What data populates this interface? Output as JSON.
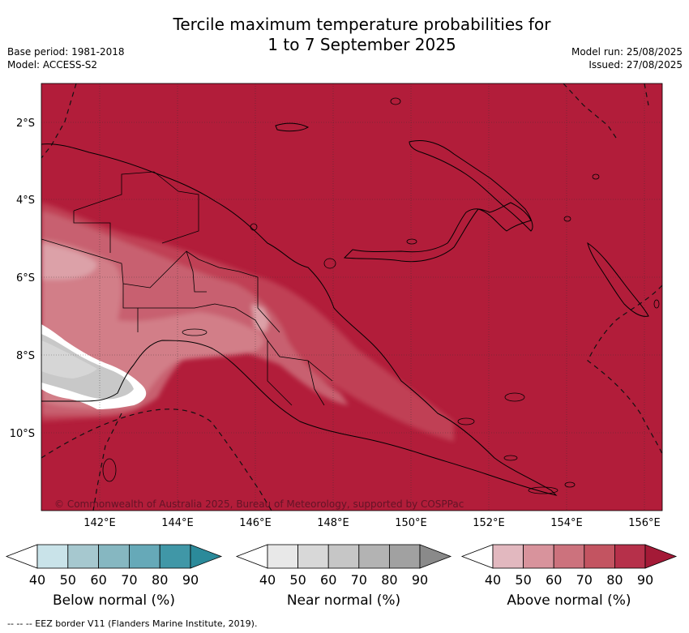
{
  "title": {
    "line1": "Tercile maximum temperature probabilities for",
    "line2": "1 to 7 September 2025"
  },
  "meta_left": {
    "base_period": "Base period: 1981-2018",
    "model": "Model: ACCESS-S2"
  },
  "meta_right": {
    "model_run": "Model run: 25/08/2025",
    "issued": "Issued: 27/08/2025"
  },
  "map": {
    "lat_labels": [
      "2°S",
      "4°S",
      "6°S",
      "8°S",
      "10°S"
    ],
    "lon_labels": [
      "142°E",
      "144°E",
      "146°E",
      "148°E",
      "150°E",
      "152°E",
      "154°E",
      "156°E"
    ],
    "copyright": "© Commonwealth of Australia 2025, Bureau of Meteorology, supported by COSPPac",
    "background_color": "#b21d3a"
  },
  "colorbars": [
    {
      "title": "Below normal (%)",
      "ticks": [
        "40",
        "50",
        "60",
        "70",
        "80",
        "90"
      ],
      "colors": [
        "#ffffff",
        "#c9e3e9",
        "#a6c8cf",
        "#86b7c1",
        "#66a9b8",
        "#4097a7",
        "#2b8a9a"
      ]
    },
    {
      "title": "Near normal (%)",
      "ticks": [
        "40",
        "50",
        "60",
        "70",
        "80",
        "90"
      ],
      "colors": [
        "#ffffff",
        "#e8e8e8",
        "#d8d8d8",
        "#c6c6c6",
        "#b3b3b3",
        "#a1a1a1",
        "#8a8a8a"
      ]
    },
    {
      "title": "Above normal (%)",
      "ticks": [
        "40",
        "50",
        "60",
        "70",
        "80",
        "90"
      ],
      "colors": [
        "#ffffff",
        "#e2b8bf",
        "#d8939c",
        "#cc727d",
        "#c35461",
        "#b6304a",
        "#a41a37"
      ]
    }
  ],
  "footnote": "-- -- -- EEZ border V11 (Flanders Marine Institute, 2019)."
}
